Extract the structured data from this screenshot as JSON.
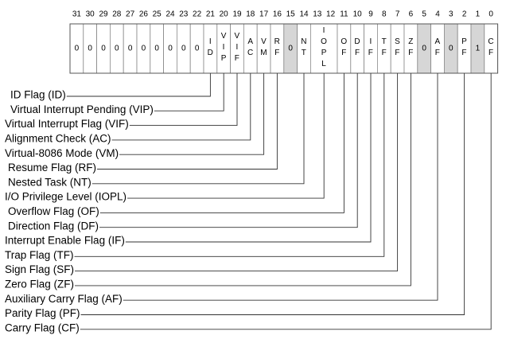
{
  "bit_numbers": [
    "31",
    "30",
    "29",
    "28",
    "27",
    "26",
    "25",
    "24",
    "23",
    "22",
    "21",
    "20",
    "19",
    "18",
    "17",
    "16",
    "15",
    "14",
    "13",
    "12",
    "11",
    "10",
    "9",
    "8",
    "7",
    "6",
    "5",
    "4",
    "3",
    "2",
    "1",
    "0"
  ],
  "cells": [
    {
      "text": "0"
    },
    {
      "text": "0"
    },
    {
      "text": "0"
    },
    {
      "text": "0"
    },
    {
      "text": "0"
    },
    {
      "text": "0"
    },
    {
      "text": "0"
    },
    {
      "text": "0"
    },
    {
      "text": "0"
    },
    {
      "text": "0"
    },
    {
      "text": "ID"
    },
    {
      "text": "VIP"
    },
    {
      "text": "VIF"
    },
    {
      "text": "AC"
    },
    {
      "text": "VM"
    },
    {
      "text": "RF"
    },
    {
      "text": "0",
      "shaded": true
    },
    {
      "text": "NT"
    },
    {
      "text": "IOPL",
      "span": 2
    },
    {
      "text": "OF"
    },
    {
      "text": "DF"
    },
    {
      "text": "IF"
    },
    {
      "text": "TF"
    },
    {
      "text": "SF"
    },
    {
      "text": "ZF"
    },
    {
      "text": "0",
      "shaded": true
    },
    {
      "text": "AF"
    },
    {
      "text": "0",
      "shaded": true
    },
    {
      "text": "PF"
    },
    {
      "text": "1",
      "shaded": true
    },
    {
      "text": "CF"
    }
  ],
  "flags": [
    {
      "label": "ID Flag (ID)"
    },
    {
      "label": "Virtual Interrupt Pending (VIP)"
    },
    {
      "label": "Virtual Interrupt Flag (VIF)"
    },
    {
      "label": "Alignment Check (AC)"
    },
    {
      "label": "Virtual-8086 Mode (VM)"
    },
    {
      "label": "Resume Flag (RF)"
    },
    {
      "label": "Nested Task (NT)"
    },
    {
      "label": "I/O Privilege Level (IOPL)"
    },
    {
      "label": "Overflow Flag (OF)"
    },
    {
      "label": "Direction Flag (DF)"
    },
    {
      "label": "Interrupt Enable Flag (IF)"
    },
    {
      "label": "Trap Flag (TF)"
    },
    {
      "label": "Sign Flag (SF)"
    },
    {
      "label": "Zero Flag (ZF)"
    },
    {
      "label": "Auxiliary Carry Flag (AF)"
    },
    {
      "label": "Parity Flag (PF)"
    },
    {
      "label": "Carry Flag (CF)"
    }
  ]
}
